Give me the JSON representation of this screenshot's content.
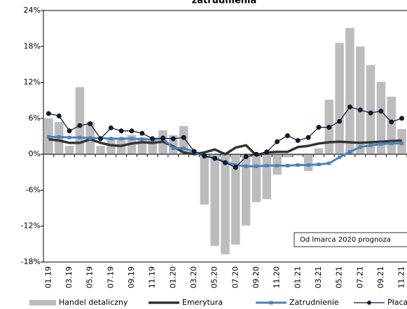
{
  "chart_data": {
    "type": "combo",
    "title": "zatrudnienia",
    "categories": [
      "01.19",
      null,
      "03.19",
      null,
      "05.19",
      null,
      "07.19",
      null,
      "09.19",
      null,
      "11.19",
      null,
      "01.20",
      null,
      "03.20",
      null,
      "05.20",
      null,
      "07.20",
      null,
      "09.20",
      null,
      "11.20",
      null,
      "01.21",
      null,
      "03.21",
      null,
      "05.21",
      null,
      "07.21",
      null,
      "09.21",
      null,
      "11.21"
    ],
    "series": [
      {
        "name": "Handel detaliczny",
        "type": "bar",
        "color": "#bcbcbc",
        "values": [
          6.0,
          5.4,
          1.4,
          11.2,
          5.4,
          1.4,
          2.8,
          2.8,
          3.2,
          2.8,
          2.4,
          4.0,
          3.2,
          4.7,
          0.5,
          -8.4,
          -15.3,
          -16.7,
          -15.1,
          -11.9,
          -8.0,
          -7.5,
          -3.4,
          -0.5,
          -0.2,
          -2.8,
          1.0,
          9.1,
          18.6,
          21.1,
          18.0,
          14.9,
          12.1,
          9.6,
          4.2
        ]
      },
      {
        "name": "Emerytura",
        "type": "line",
        "color": "#333333",
        "marker": "none",
        "values": [
          2.5,
          2.3,
          1.9,
          1.9,
          2.5,
          1.9,
          1.5,
          1.4,
          1.8,
          2.0,
          1.9,
          2.1,
          1.3,
          0.3,
          0.0,
          0.3,
          0.8,
          0.0,
          1.1,
          1.5,
          -0.2,
          0.3,
          0.4,
          0.4,
          1.2,
          1.4,
          1.8,
          2.0,
          2.1,
          2.0,
          1.9,
          2.0,
          2.1,
          2.2,
          2.3
        ]
      },
      {
        "name": "Zatrudnienie",
        "type": "line",
        "color": "#4f81bd",
        "marker": "square",
        "values": [
          2.9,
          2.9,
          2.8,
          2.8,
          2.7,
          2.7,
          2.6,
          2.6,
          2.6,
          2.5,
          2.5,
          2.6,
          1.0,
          1.0,
          0.4,
          -0.3,
          -0.6,
          -1.3,
          -1.8,
          -2.0,
          -2.0,
          -1.9,
          -1.9,
          -1.9,
          -1.8,
          -1.8,
          -1.7,
          -1.5,
          -0.5,
          0.4,
          1.2,
          1.5,
          1.7,
          1.8,
          1.8
        ]
      },
      {
        "name": "Płaca",
        "type": "line",
        "color": "#0f1f3d",
        "marker": "circle",
        "values": [
          6.8,
          6.4,
          3.9,
          4.8,
          5.1,
          2.6,
          4.4,
          3.9,
          3.9,
          3.5,
          2.6,
          2.7,
          2.6,
          2.8,
          0.5,
          -0.3,
          -0.7,
          -1.4,
          -2.2,
          -0.4,
          0.0,
          0.4,
          2.1,
          3.1,
          2.3,
          2.8,
          4.5,
          4.5,
          5.5,
          7.9,
          7.4,
          6.9,
          7.2,
          5.4,
          6.0
        ]
      }
    ],
    "ylim": [
      -18,
      24
    ],
    "yticks": [
      {
        "value": -18,
        "label": "-18%"
      },
      {
        "value": -12,
        "label": "-12%"
      },
      {
        "value": -6,
        "label": "-6%"
      },
      {
        "value": 0,
        "label": "0%"
      },
      {
        "value": 6,
        "label": "6%"
      },
      {
        "value": 12,
        "label": "12%"
      },
      {
        "value": 18,
        "label": "18%"
      },
      {
        "value": 24,
        "label": "24%"
      }
    ],
    "grid": false,
    "annotation": "Od lmarca 2020 prognoza",
    "legend": "bottom"
  }
}
